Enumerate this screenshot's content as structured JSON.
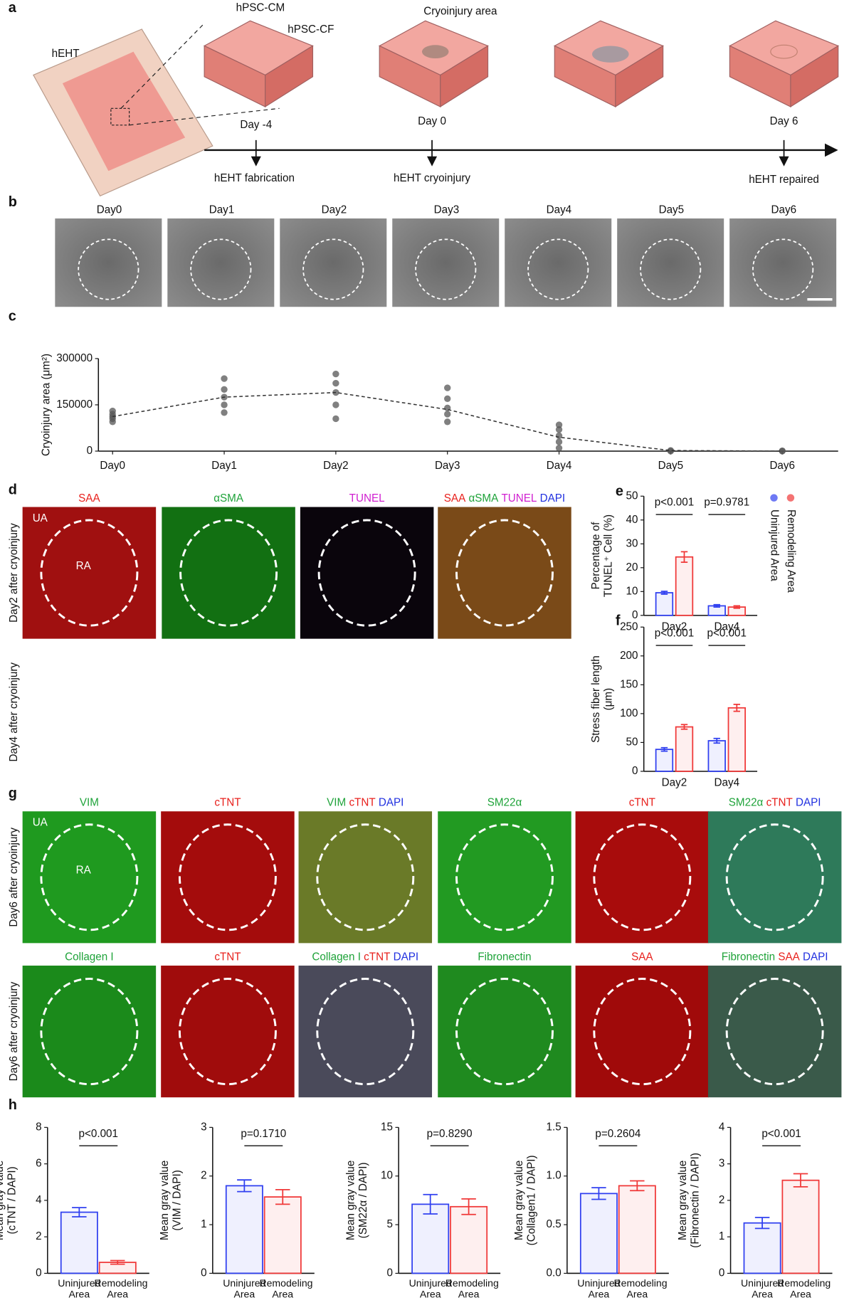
{
  "figure": {
    "panels": [
      "a",
      "b",
      "c",
      "d",
      "e",
      "f",
      "g",
      "h"
    ],
    "schematic": {
      "labels": [
        "hEHT",
        "hPSC-CM",
        "hPSC-CF",
        "Cryoinjury area"
      ],
      "days": [
        "Day -4",
        "Day 0",
        "Day 6"
      ],
      "events": [
        "hEHT fabrication",
        "hEHT cryoinjury",
        "hEHT repaired"
      ]
    },
    "timelapse": [
      "Day0",
      "Day1",
      "Day2",
      "Day3",
      "Day4",
      "Day5",
      "Day6"
    ],
    "d": {
      "channels": [
        [
          {
            "text": "SAA",
            "color": "#e8201c"
          }
        ],
        [
          {
            "text": "αSMA",
            "color": "#1fa33a"
          }
        ],
        [
          {
            "text": "TUNEL",
            "color": "#d01fd0"
          }
        ],
        [
          {
            "text": "SAA",
            "color": "#e8201c"
          },
          {
            "text": "αSMA",
            "color": "#1fa33a"
          },
          {
            "text": "TUNEL",
            "color": "#d01fd0"
          },
          {
            "text": "DAPI",
            "color": "#2030e0"
          }
        ]
      ],
      "rows": [
        "Day2 after cryoinjury",
        "Day4 after cryoinjury"
      ],
      "regions": [
        "UA",
        "RA"
      ]
    },
    "g": {
      "channels": [
        [
          {
            "text": "VIM",
            "color": "#1fa33a"
          }
        ],
        [
          {
            "text": "cTNT",
            "color": "#e8201c"
          }
        ],
        [
          {
            "text": "VIM",
            "color": "#1fa33a"
          },
          {
            "text": "cTNT",
            "color": "#e8201c"
          },
          {
            "text": "DAPI",
            "color": "#2030e0"
          }
        ],
        [
          {
            "text": "SM22α",
            "color": "#1fa33a"
          }
        ],
        [
          {
            "text": "cTNT",
            "color": "#e8201c"
          }
        ],
        [
          {
            "text": "SM22α",
            "color": "#1fa33a"
          },
          {
            "text": "cTNT",
            "color": "#e8201c"
          },
          {
            "text": "DAPI",
            "color": "#2030e0"
          }
        ],
        [
          {
            "text": "Collagen I",
            "color": "#1fa33a"
          }
        ],
        [
          {
            "text": "cTNT",
            "color": "#e8201c"
          }
        ],
        [
          {
            "text": "Collagen I",
            "color": "#1fa33a"
          },
          {
            "text": "cTNT",
            "color": "#e8201c"
          },
          {
            "text": "DAPI",
            "color": "#2030e0"
          }
        ],
        [
          {
            "text": "Fibronectin",
            "color": "#1fa33a"
          }
        ],
        [
          {
            "text": "SAA",
            "color": "#e8201c"
          }
        ],
        [
          {
            "text": "Fibronectin",
            "color": "#1fa33a"
          },
          {
            "text": "SAA",
            "color": "#e8201c"
          },
          {
            "text": "DAPI",
            "color": "#2030e0"
          }
        ]
      ],
      "rows": [
        "Day6 after cryoinjury",
        "Day6 after cryoinjury"
      ],
      "regions": [
        "UA",
        "RA"
      ]
    }
  },
  "chart_data": [
    {
      "type": "line",
      "ylabel": [
        "Cryoinjury area (μm²)"
      ],
      "categories": [
        "Day0",
        "Day1",
        "Day2",
        "Day3",
        "Day4",
        "Day5",
        "Day6"
      ],
      "values": [
        112000,
        175000,
        190000,
        135000,
        45000,
        2000,
        0
      ],
      "points": [
        [
          95000,
          105000,
          112000,
          120000,
          130000
        ],
        [
          125000,
          150000,
          175000,
          200000,
          235000
        ],
        [
          105000,
          150000,
          190000,
          220000,
          250000
        ],
        [
          95000,
          120000,
          140000,
          170000,
          205000
        ],
        [
          10000,
          30000,
          50000,
          70000,
          85000
        ],
        [
          0,
          2000
        ],
        [
          0,
          1000
        ]
      ],
      "color": "#333333",
      "point_color": "#555555",
      "ylim": [
        0,
        300000
      ],
      "yticks": [
        0,
        150000,
        300000
      ]
    },
    {
      "type": "bar",
      "ylabel": [
        "Percentage of",
        "TUNEL⁺ Cell (%)"
      ],
      "categories": [
        "Day2",
        "Day4"
      ],
      "series": [
        {
          "name": "Uninjured Area",
          "color": "#3040f0",
          "values": [
            9.5,
            4
          ],
          "errors": [
            0.6,
            0.5
          ]
        },
        {
          "name": "Remodeling Area",
          "color": "#f03838",
          "values": [
            24.5,
            3.5
          ],
          "errors": [
            2.2,
            0.5
          ]
        }
      ],
      "ylim": [
        0,
        50
      ],
      "yticks": [
        0,
        10,
        20,
        30,
        40,
        50
      ],
      "annotations": [
        "p<0.001",
        "p=0.9781"
      ]
    },
    {
      "type": "bar",
      "ylabel": [
        "Stress fiber length",
        "(μm)"
      ],
      "categories": [
        "Day2",
        "Day4"
      ],
      "series": [
        {
          "color": "#3040f0",
          "values": [
            38,
            53
          ],
          "errors": [
            3,
            4
          ]
        },
        {
          "color": "#f03838",
          "values": [
            77,
            110
          ],
          "errors": [
            4,
            6
          ]
        }
      ],
      "ylim": [
        0,
        250
      ],
      "yticks": [
        0,
        50,
        100,
        150,
        200,
        250
      ],
      "annotations": [
        "p<0.001",
        "p<0.001"
      ]
    },
    {
      "type": "bar",
      "ylabel": [
        "Mean gray value",
        "(cTNT / DAPI)"
      ],
      "categories": [
        "Uninjured Area",
        "Remodeling Area"
      ],
      "colors": [
        "#3040f0",
        "#f03838"
      ],
      "values": [
        3.35,
        0.6
      ],
      "errors": [
        0.25,
        0.1
      ],
      "ylim": [
        0,
        8
      ],
      "yticks": [
        0,
        2,
        4,
        6,
        8
      ],
      "annotations": [
        "p<0.001"
      ]
    },
    {
      "type": "bar",
      "ylabel": [
        "Mean gray value",
        "(VIM / DAPI)"
      ],
      "categories": [
        "Uninjured Area",
        "Remodeling Area"
      ],
      "colors": [
        "#3040f0",
        "#f03838"
      ],
      "values": [
        1.8,
        1.57
      ],
      "errors": [
        0.12,
        0.15
      ],
      "ylim": [
        0,
        3
      ],
      "yticks": [
        0,
        1,
        2,
        3
      ],
      "annotations": [
        "p=0.1710"
      ]
    },
    {
      "type": "bar",
      "ylabel": [
        "Mean gray value",
        "(SM22α / DAPI)"
      ],
      "categories": [
        "Uninjured Area",
        "Remodeling Area"
      ],
      "colors": [
        "#3040f0",
        "#f03838"
      ],
      "values": [
        7.1,
        6.85
      ],
      "errors": [
        1.0,
        0.8
      ],
      "ylim": [
        0,
        15
      ],
      "yticks": [
        0,
        5,
        10,
        15
      ],
      "annotations": [
        "p=0.8290"
      ]
    },
    {
      "type": "bar",
      "ylabel": [
        "Mean gray value",
        "(Collagen1 / DAPI)"
      ],
      "categories": [
        "Uninjured Area",
        "Remodeling Area"
      ],
      "colors": [
        "#3040f0",
        "#f03838"
      ],
      "values": [
        0.82,
        0.9
      ],
      "errors": [
        0.06,
        0.05
      ],
      "ylim": [
        0,
        1.5
      ],
      "yticks": [
        {
          "value": 0,
          "label": "0.0"
        },
        0.5,
        {
          "value": 1,
          "label": "1.0"
        },
        1.5
      ],
      "annotations": [
        "p=0.2604"
      ]
    },
    {
      "type": "bar",
      "ylabel": [
        "Mean gray value",
        "(Fibronectin / DAPI)"
      ],
      "categories": [
        "Uninjured Area",
        "Remodeling Area"
      ],
      "colors": [
        "#3040f0",
        "#f03838"
      ],
      "values": [
        1.38,
        2.55
      ],
      "errors": [
        0.15,
        0.18
      ],
      "ylim": [
        0,
        4
      ],
      "yticks": [
        0,
        1,
        2,
        3,
        4
      ],
      "annotations": [
        "p<0.001"
      ]
    }
  ]
}
